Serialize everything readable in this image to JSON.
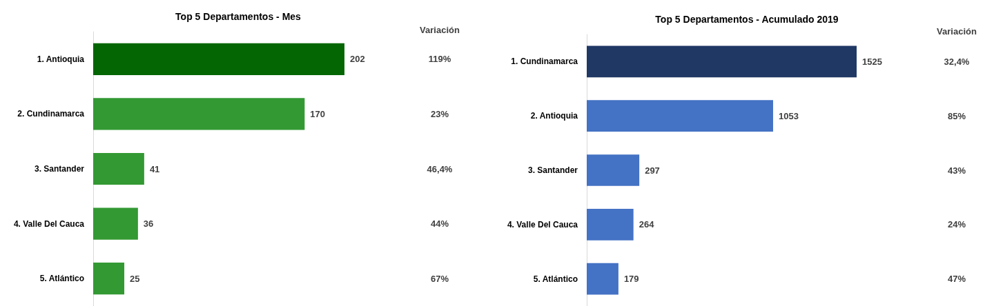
{
  "chart_data": [
    {
      "type": "bar",
      "orientation": "horizontal",
      "title": "Top 5 Departamentos - Mes",
      "categories": [
        "1. Antioquia",
        "2. Cundinamarca",
        "3. Santander",
        "4. Valle Del Cauca",
        "5. Atlántico"
      ],
      "values": [
        202,
        170,
        41,
        36,
        25
      ],
      "colors": [
        "#036603",
        "#339933",
        "#339933",
        "#339933",
        "#339933"
      ],
      "data_labels": true,
      "tick_labels": "y",
      "annotations": [
        "Variación",
        "119%",
        "23%",
        "46,4%",
        "44%",
        "67%"
      ]
    },
    {
      "type": "bar",
      "orientation": "horizontal",
      "title": "Top 5 Departamentos - Acumulado 2019",
      "categories": [
        "1. Cundinamarca",
        "2. Antioquia",
        "3. Santander",
        "4. Valle Del Cauca",
        "5. Atlántico"
      ],
      "values": [
        1525,
        1053,
        297,
        264,
        179
      ],
      "colors": [
        "#203864",
        "#4472c4",
        "#4472c4",
        "#4472c4",
        "#4472c4"
      ],
      "data_labels": true,
      "tick_labels": "y",
      "annotations": [
        "Variación",
        "32,4%",
        "85%",
        "43%",
        "24%",
        "47%"
      ]
    }
  ]
}
